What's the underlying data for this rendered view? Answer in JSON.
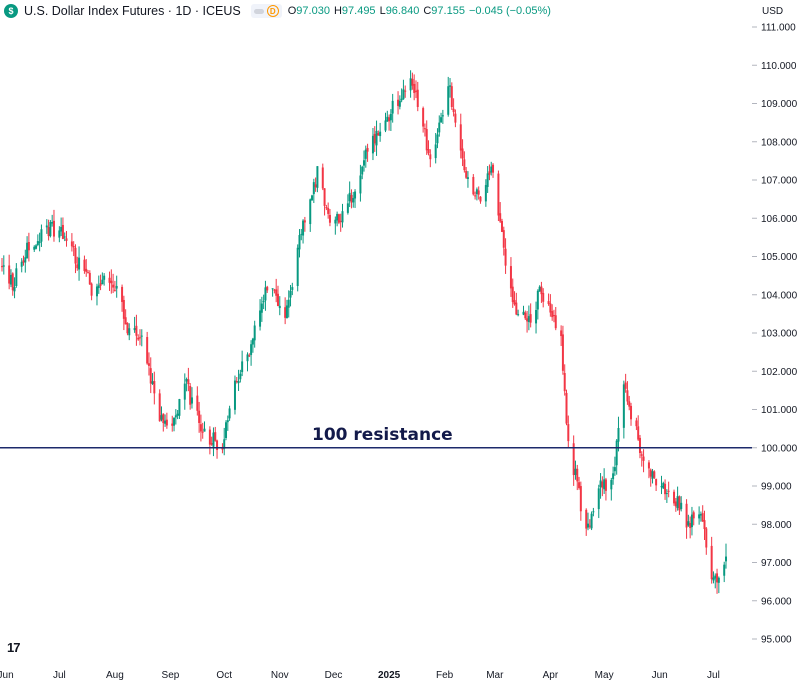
{
  "legend": {
    "logo_letter": "$",
    "symbol_title": "U.S. Dollar Index Futures · 1D · ICEUS",
    "toggle_badge": "D",
    "ohlc": [
      {
        "k": "O",
        "v": "97.030"
      },
      {
        "k": "H",
        "v": "97.495"
      },
      {
        "k": "L",
        "v": "96.840"
      },
      {
        "k": "C",
        "v": "97.155"
      },
      {
        "k": "",
        "v": "−0.045 (−0.05%)"
      }
    ]
  },
  "watermark": "17",
  "colors": {
    "up": "#089981",
    "down": "#f23645",
    "resistance_line": "#1c2a6b",
    "grid": "#f0f3fa"
  },
  "chart_data": {
    "type": "candlestick",
    "currency": "USD",
    "ylim": [
      94.6,
      111.2
    ],
    "y_ticks": [
      95.0,
      96.0,
      97.0,
      98.0,
      99.0,
      100.0,
      101.0,
      102.0,
      103.0,
      104.0,
      105.0,
      106.0,
      107.0,
      108.0,
      109.0,
      110.0,
      111.0
    ],
    "x_labels": [
      "Jun",
      "Jul",
      "Aug",
      "Sep",
      "Oct",
      "Nov",
      "Dec",
      "2025",
      "Feb",
      "Mar",
      "Apr",
      "May",
      "Jun",
      "Jul"
    ],
    "x_bold": [
      "2025"
    ],
    "grid": false,
    "resistance": {
      "value": 100.0,
      "label": "100 resistance"
    },
    "control_points": [
      {
        "date": "2024-05-30",
        "close": 104.8
      },
      {
        "date": "2024-06-05",
        "close": 104.2
      },
      {
        "date": "2024-06-12",
        "close": 105.2
      },
      {
        "date": "2024-06-26",
        "close": 105.8
      },
      {
        "date": "2024-07-02",
        "close": 105.6
      },
      {
        "date": "2024-07-12",
        "close": 104.8
      },
      {
        "date": "2024-07-19",
        "close": 104.2
      },
      {
        "date": "2024-07-26",
        "close": 104.3
      },
      {
        "date": "2024-08-02",
        "close": 104.2
      },
      {
        "date": "2024-08-09",
        "close": 103.0
      },
      {
        "date": "2024-08-16",
        "close": 102.9
      },
      {
        "date": "2024-08-26",
        "close": 100.8
      },
      {
        "date": "2024-09-02",
        "close": 100.5
      },
      {
        "date": "2024-09-10",
        "close": 101.6
      },
      {
        "date": "2024-09-17",
        "close": 100.6
      },
      {
        "date": "2024-09-25",
        "close": 100.2
      },
      {
        "date": "2024-09-30",
        "close": 100.0
      },
      {
        "date": "2024-10-05",
        "close": 101.5
      },
      {
        "date": "2024-10-15",
        "close": 102.6
      },
      {
        "date": "2024-10-24",
        "close": 104.0
      },
      {
        "date": "2024-11-01",
        "close": 103.9
      },
      {
        "date": "2024-11-05",
        "close": 103.5
      },
      {
        "date": "2024-11-12",
        "close": 105.5
      },
      {
        "date": "2024-11-22",
        "close": 107.2
      },
      {
        "date": "2024-11-29",
        "close": 105.8
      },
      {
        "date": "2024-12-06",
        "close": 106.0
      },
      {
        "date": "2024-12-13",
        "close": 106.8
      },
      {
        "date": "2024-12-20",
        "close": 107.8
      },
      {
        "date": "2024-12-31",
        "close": 108.6
      },
      {
        "date": "2025-01-13",
        "close": 109.8
      },
      {
        "date": "2025-01-24",
        "close": 107.5
      },
      {
        "date": "2025-02-03",
        "close": 109.5
      },
      {
        "date": "2025-02-14",
        "close": 107.0
      },
      {
        "date": "2025-02-21",
        "close": 106.5
      },
      {
        "date": "2025-02-28",
        "close": 107.4
      },
      {
        "date": "2025-03-04",
        "close": 105.7
      },
      {
        "date": "2025-03-11",
        "close": 103.8
      },
      {
        "date": "2025-03-19",
        "close": 103.2
      },
      {
        "date": "2025-03-26",
        "close": 104.0
      },
      {
        "date": "2025-04-02",
        "close": 103.5
      },
      {
        "date": "2025-04-07",
        "close": 102.8
      },
      {
        "date": "2025-04-11",
        "close": 100.2
      },
      {
        "date": "2025-04-17",
        "close": 98.8
      },
      {
        "date": "2025-04-21",
        "close": 97.8
      },
      {
        "date": "2025-04-29",
        "close": 99.0
      },
      {
        "date": "2025-05-06",
        "close": 99.2
      },
      {
        "date": "2025-05-12",
        "close": 101.6
      },
      {
        "date": "2025-05-20",
        "close": 100.2
      },
      {
        "date": "2025-05-27",
        "close": 99.4
      },
      {
        "date": "2025-06-03",
        "close": 98.9
      },
      {
        "date": "2025-06-10",
        "close": 98.6
      },
      {
        "date": "2025-06-17",
        "close": 98.0
      },
      {
        "date": "2025-06-24",
        "close": 98.4
      },
      {
        "date": "2025-07-01",
        "close": 96.5
      },
      {
        "date": "2025-07-08",
        "close": 97.155
      }
    ]
  }
}
